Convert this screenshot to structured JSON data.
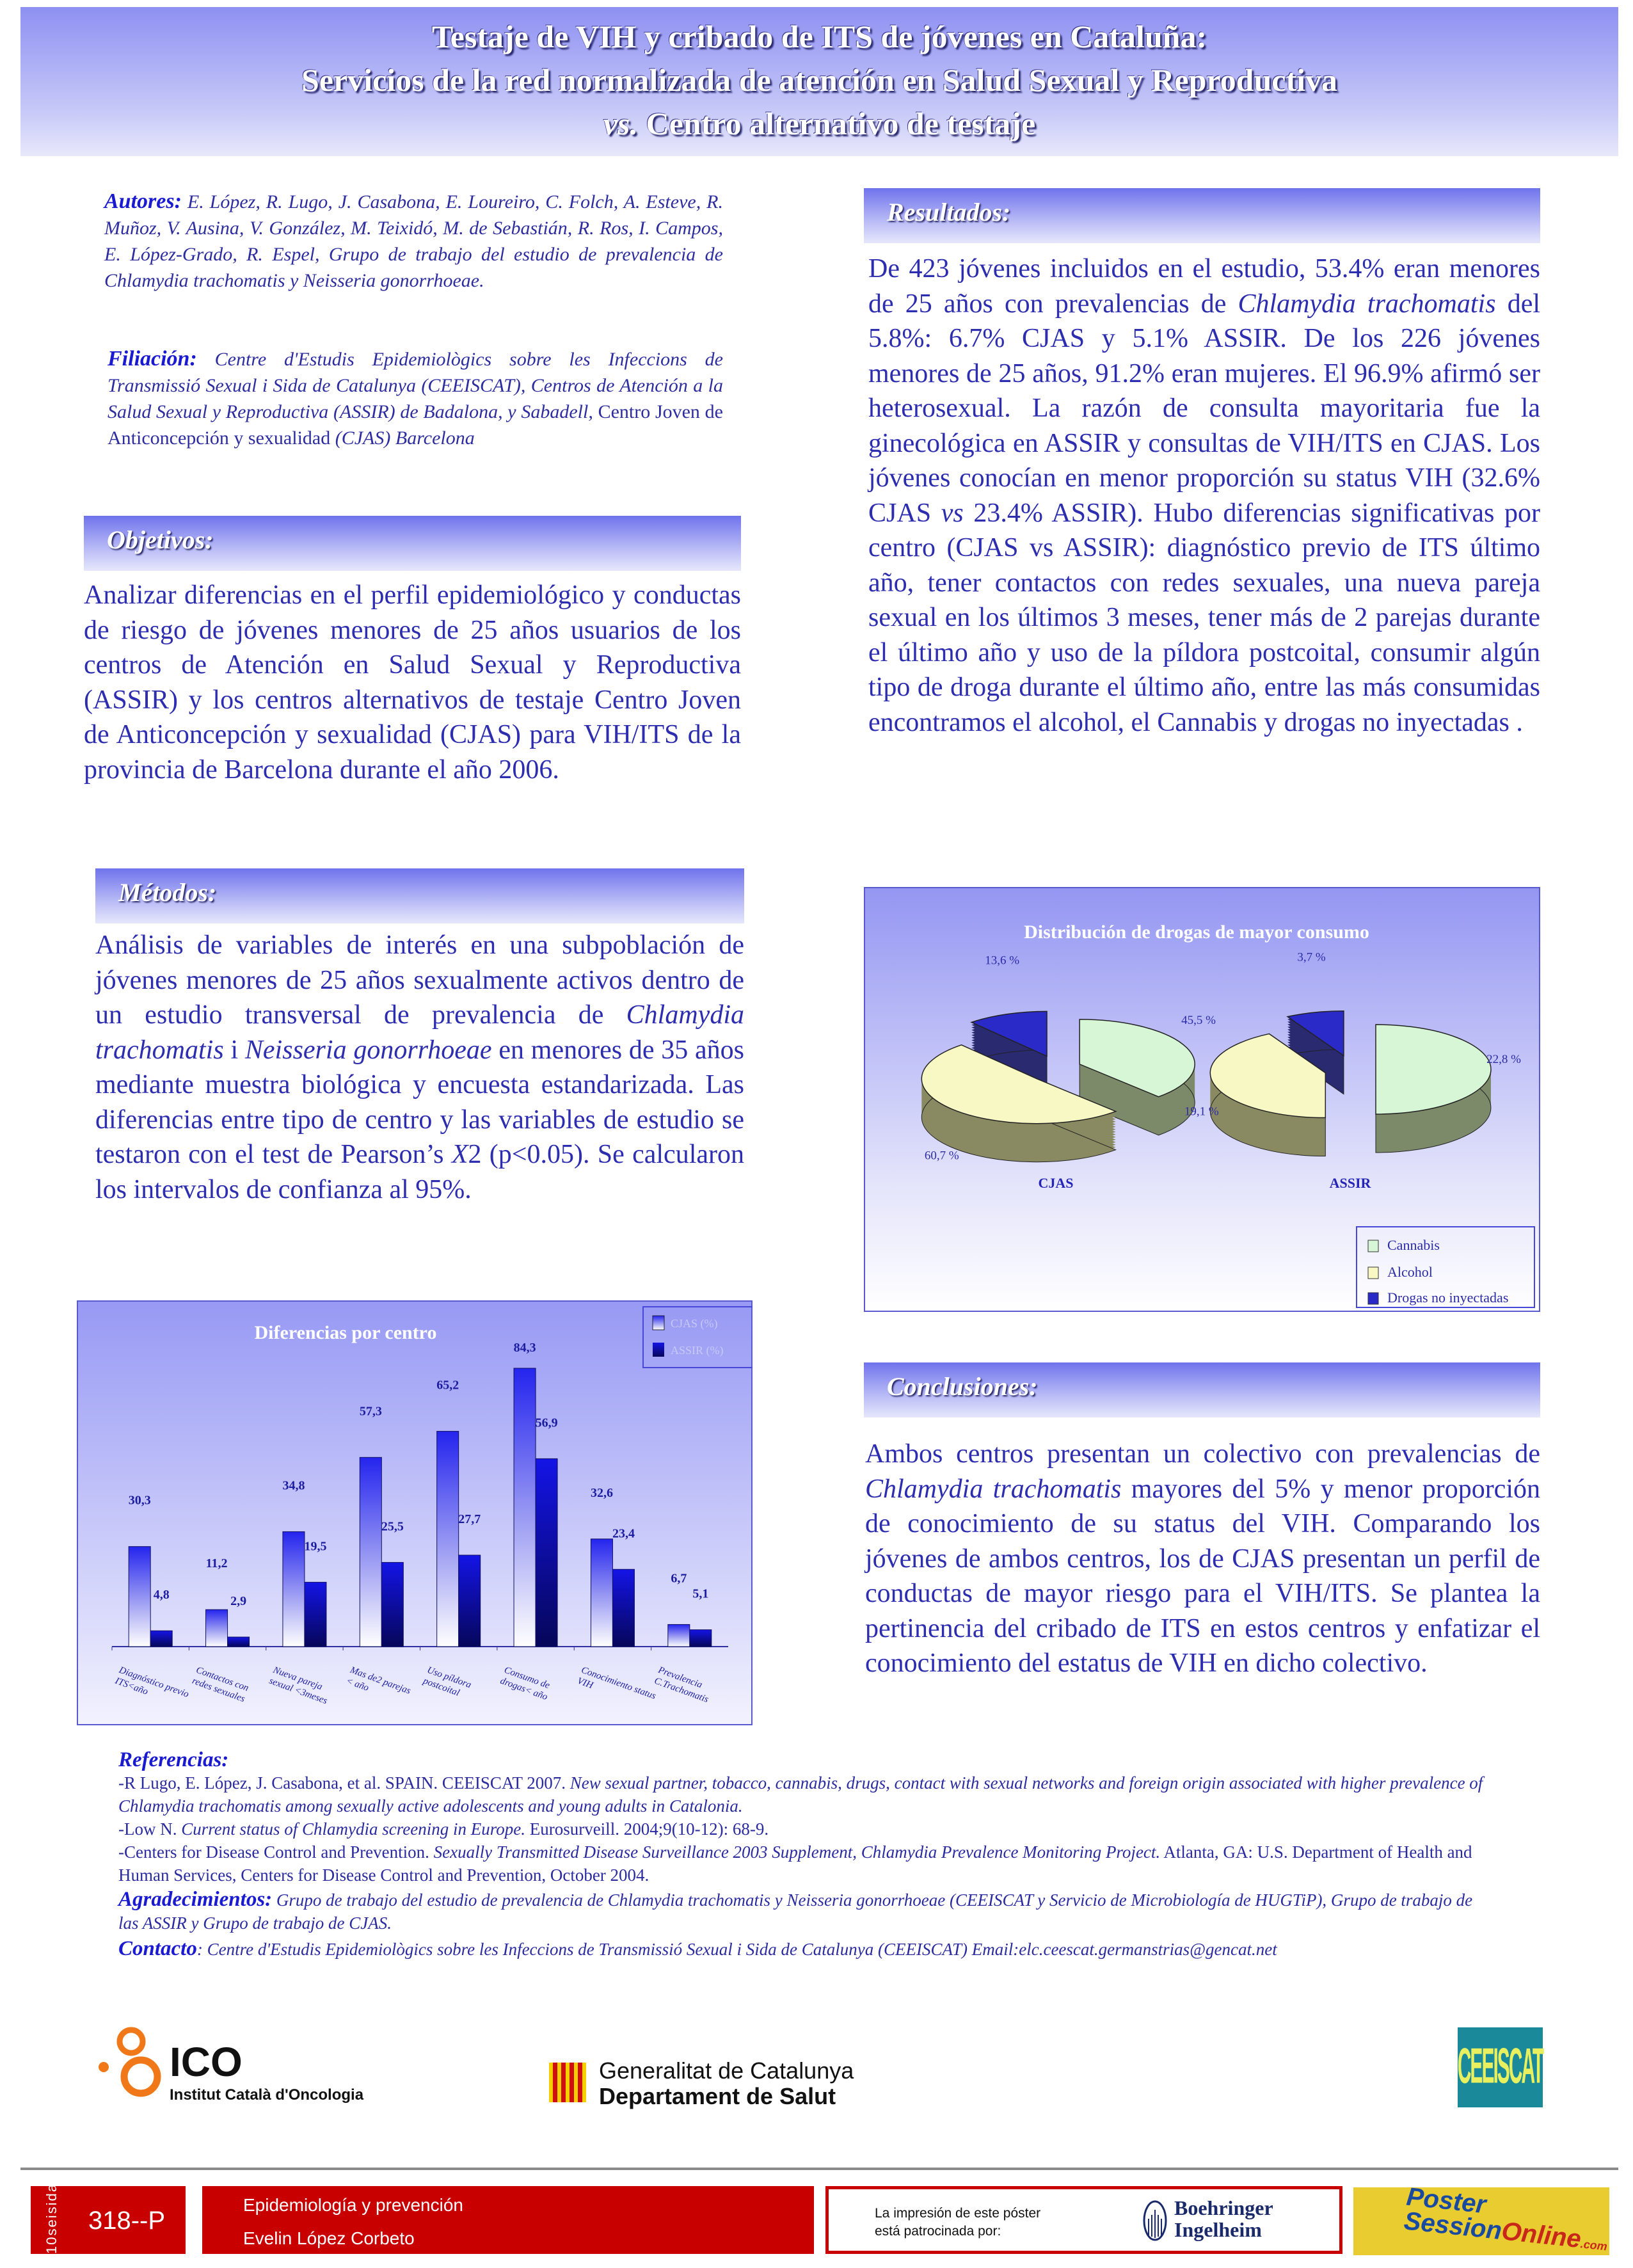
{
  "title": {
    "line1": "Testaje de VIH y cribado de ITS de jóvenes en Cataluña:",
    "line2": "Servicios de la red normalizada de atención en Salud Sexual y Reproductiva",
    "line3_italic": "vs.",
    "line3_rest": " Centro alternativo de testaje"
  },
  "authors": {
    "label": "Autores:",
    "text": " E. López, R. Lugo, J. Casabona, E. Loureiro, C. Folch, A. Esteve,  R. Muñoz, V. Ausina, V. González, M. Teixidó, M. de Sebastián, R. Ros, I. Campos, E. López-Grado, R. Espel, Grupo de trabajo del estudio de prevalencia de Chlamydia trachomatis y Neisseria gonorrhoeae."
  },
  "affiliation": {
    "label": "Filiación:",
    "text1": " Centre d'Estudis Epidemiològics sobre les  Infeccions de Transmissió Sexual i Sida de Catalunya (CEEISCAT), Centros de Atención a la Salud Sexual y Reproductiva (ASSIR) de Badalona, y Sabadell, ",
    "text2": "Centro Joven de Anticoncepción y sexualidad",
    "text3": " (CJAS) Barcelona"
  },
  "objetivos": {
    "header": "Objetivos:",
    "segs": [
      {
        "t": "Analizar diferencias en el perfil epidemiológico y conductas de riesgo de jóvenes menores de 25 años usuarios de los centros de Atención en Salud Sexual y Reproductiva (ASSIR) y los centros alternativos de testaje Centro Joven de Anticoncepción y sexualidad (CJAS) para VIH/ITS de la provincia de Barcelona durante el año 2006.",
        "i": false
      }
    ]
  },
  "metodos": {
    "header": "Métodos:",
    "segs": [
      {
        "t": "Análisis de variables de interés en una subpoblación de jóvenes menores de 25 años sexualmente activos dentro de un estudio transversal de prevalencia de ",
        "i": false
      },
      {
        "t": "Chlamydia trachomatis",
        "i": true
      },
      {
        "t": " i ",
        "i": false
      },
      {
        "t": "Neisseria gonorrhoeae",
        "i": true
      },
      {
        "t": " en menores de 35 años mediante muestra biológica y encuesta estandarizada. Las diferencias entre tipo de centro y las variables de estudio se testaron con el test de Pearson’s ",
        "i": false
      },
      {
        "t": "X",
        "i": true
      },
      {
        "t": "2 (p<0.05). Se calcularon los intervalos de confianza al 95%.",
        "i": false
      }
    ]
  },
  "resultados": {
    "header": "Resultados:",
    "segs": [
      {
        "t": "De 423 jóvenes incluidos en el estudio, 53.4% eran menores de 25 años con prevalencias de ",
        "i": false
      },
      {
        "t": "Chlamydia trachomatis",
        "i": true
      },
      {
        "t": " del 5.8%: 6.7% CJAS y 5.1% ASSIR. De los 226 jóvenes menores de 25 años, 91.2% eran mujeres. El 96.9% afirmó ser heterosexual. La razón de consulta mayoritaria fue la ginecológica en ASSIR y consultas de VIH/ITS en CJAS. Los jóvenes conocían en menor proporción su status VIH (32.6% CJAS ",
        "i": false
      },
      {
        "t": "vs",
        "i": true
      },
      {
        "t": " 23.4% ASSIR). Hubo diferencias significativas por centro (CJAS vs ASSIR): diagnóstico previo de ITS último año, tener contactos con redes sexuales, una nueva pareja sexual en los últimos 3 meses, tener más de 2 parejas durante el último año y uso de la píldora postcoital, consumir algún tipo de droga durante el último año, entre las más consumidas encontramos el alcohol, el Cannabis y drogas no inyectadas .",
        "i": false
      }
    ]
  },
  "conclusiones": {
    "header": "Conclusiones:",
    "segs": [
      {
        "t": "Ambos centros presentan un colectivo con prevalencias de ",
        "i": false
      },
      {
        "t": "Chlamydia trachomatis",
        "i": true
      },
      {
        "t": " mayores del 5% y menor proporción de conocimiento de su status del VIH. Comparando los jóvenes de ambos centros, los de CJAS presentan un perfil de conductas de mayor riesgo para el VIH/ITS. Se plantea la pertinencia del cribado de ITS en estos centros y enfatizar el conocimiento del estatus de VIH en dicho colectivo.",
        "i": false
      }
    ]
  },
  "chart_data": [
    {
      "type": "bar",
      "title": "Diferencias por centro",
      "categories": [
        "Diagnóstico previo ITS<año",
        "Contactos con redes sexuales",
        "Nueva pareja sexual <3meses",
        "Mas de2 parejas < año",
        "Uso píldora postcoital",
        "Consumo de drogas< año",
        "Conocimiento status VIH",
        "Prevalencia C.Trachomatis"
      ],
      "series": [
        {
          "name": "CJAS   (%)",
          "values": [
            30.3,
            11.2,
            34.8,
            57.3,
            65.2,
            84.3,
            32.6,
            6.7
          ],
          "labels": [
            "30,3",
            "11,2",
            "34,8",
            "57,3",
            "65,2",
            "84,3",
            "32,6",
            "6,7"
          ]
        },
        {
          "name": "ASSIR (%)",
          "values": [
            4.8,
            2.9,
            19.5,
            25.5,
            27.7,
            56.9,
            23.4,
            5.1
          ],
          "labels": [
            "4,8",
            "2,9",
            "19,5",
            "25,5",
            "27,7",
            "56,9",
            "23,4",
            "5,1"
          ]
        }
      ],
      "ylim": [
        0,
        90
      ],
      "legend": "top-right",
      "grid": false,
      "colors": {
        "CJAS": "#2a2af0",
        "ASSIR": "#0c0cc8"
      }
    },
    {
      "type": "pie",
      "title": "Distribución de drogas de mayor consumo",
      "legend_entries": [
        "Cannabis",
        "Alcohol",
        "Drogas no inyectadas"
      ],
      "colors": [
        "#d6f6d6",
        "#f8f8c4",
        "#2a2ac8"
      ],
      "pies": [
        {
          "name": "CJAS",
          "values": [
            45.5,
            60.7,
            13.6
          ],
          "labels": [
            "45,5 %",
            "60,7 %",
            "13,6 %"
          ]
        },
        {
          "name": "ASSIR",
          "values": [
            22.8,
            19.1,
            3.7
          ],
          "labels": [
            "22,8 %",
            "19,1 %",
            "3,7 %"
          ]
        }
      ],
      "legend": "bottom-right"
    }
  ],
  "references": {
    "header": "Referencias:",
    "r1a": "-R Lugo, E. López, J. Casabona, et al. SPAIN. CEEISCAT 2007. ",
    "r1b": "New sexual partner, tobacco, cannabis, drugs, contact with sexual networks and foreign origin associated with higher prevalence of Chlamydia trachomatis among sexually active adolescents and young adults in Catalonia.",
    "r2a": "-Low N. ",
    "r2b": "Current status of Chlamydia screening in Europe.",
    "r2c": " Eurosurveill. 2004;9(10-12): 68-9.",
    "r3a": "-Centers for Disease Control and Prevention. ",
    "r3b": "Sexually Transmitted Disease Surveillance 2003 Supplement, Chlamydia Prevalence Monitoring Project.",
    "r3c": " Atlanta, GA: U.S. Department of Health and Human Services, Centers for Disease Control and Prevention, October 2004.",
    "ack_label": "Agradecimientos:",
    "ack": " Grupo de trabajo del estudio de prevalencia de Chlamydia trachomatis y Neisseria gonorrhoeae (CEEISCAT y Servicio de Microbiología de HUGTiP), Grupo de trabajo de las ASSIR y Grupo de trabajo de CJAS.",
    "contact_label": "Contacto",
    "contact": ": Centre d'Estudis Epidemiològics sobre les  Infeccions de Transmissió Sexual i Sida de Catalunya (CEEISCAT) Email:elc.ceescat.germanstrias@gencat.net"
  },
  "logos": {
    "ico_big": "ICO",
    "ico_small": "Institut Català d'Oncologia",
    "gen1": "Generalitat de Catalunya",
    "gen2": "Departament de Salut",
    "ceeiscat": "CEEISCAT"
  },
  "footer": {
    "congress": "10seisida",
    "poster_id": "318--P",
    "topic": "Epidemiología y prevención",
    "presenter": "Evelin López Corbeto",
    "sponsor_text1": "La impresión de este póster",
    "sponsor_text2": "está patrocinada por:",
    "sponsor1": "Boehringer",
    "sponsor2": "Ingelheim",
    "pso1": "Poster",
    "pso2": "Session",
    "pso3": "Online",
    "pso4": ".com",
    "colors": {
      "red": "#c80000",
      "yellow": "#e8cc30"
    }
  }
}
